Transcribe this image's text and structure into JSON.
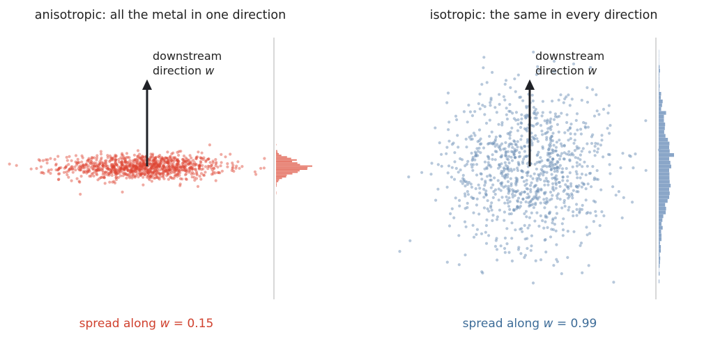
{
  "panels": [
    {
      "title": "anisotropic: all the metal in one direction",
      "annotation": [
        "downstream",
        "direction "
      ],
      "annotation_var": "w",
      "spread_prefix": "spread along ",
      "spread_var": "w",
      "spread_suffix": " = 0.15",
      "spread_color": "#d0412e"
    },
    {
      "title": "isotropic: the same in every direction",
      "annotation": [
        "downstream",
        "direction "
      ],
      "annotation_var": "w",
      "spread_prefix": "spread along ",
      "spread_var": "w",
      "spread_suffix": " = 0.99",
      "spread_color": "#3d6c98"
    }
  ],
  "colors": {
    "aniso_points": "#dd4433",
    "aniso_hist": "#e67c6e",
    "iso_points": "#6f91b8",
    "iso_hist": "#8aa6c8",
    "arrow": "#1f2126",
    "divider": "#cccccc",
    "title_text": "#222222"
  },
  "chart_data": [
    {
      "type": "scatter",
      "title": "anisotropic: all the metal in one direction",
      "n_points": 1000,
      "distribution": "gaussian, x spread ~1.0, y spread ~0.15 (y = direction w)",
      "x_range": [
        -3.3,
        3.3
      ],
      "y_range": [
        -3.3,
        3.3
      ],
      "spread_along_w": 0.15,
      "marginal": "horizontal histogram of y values (along w)",
      "grid": false
    },
    {
      "type": "scatter",
      "title": "isotropic: the same in every direction",
      "n_points": 1000,
      "distribution": "gaussian, x spread ~1.0, y spread ~0.99 (y = direction w)",
      "x_range": [
        -3.3,
        3.3
      ],
      "y_range": [
        -3.3,
        3.3
      ],
      "spread_along_w": 0.99,
      "marginal": "horizontal histogram of y values (along w)",
      "grid": false
    }
  ]
}
